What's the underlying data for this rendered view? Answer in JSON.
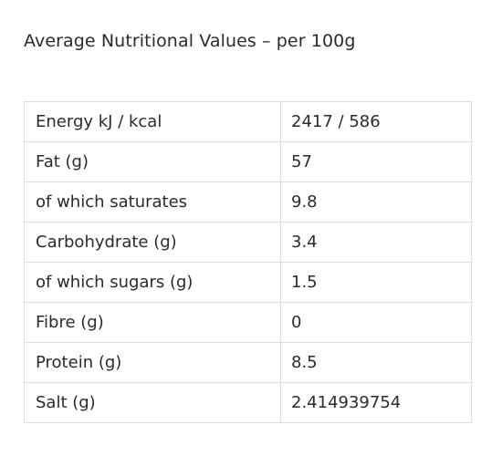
{
  "title": "Average Nutritional Values – per 100g",
  "rows": [
    {
      "label": "Energy kJ / kcal",
      "value": "2417 / 586"
    },
    {
      "label": "Fat (g)",
      "value": "57"
    },
    {
      "label": "of which saturates",
      "value": "9.8"
    },
    {
      "label": "Carbohydrate (g)",
      "value": "3.4"
    },
    {
      "label": "of which sugars (g)",
      "value": "1.5"
    },
    {
      "label": "Fibre (g)",
      "value": "0"
    },
    {
      "label": "Protein (g)",
      "value": "8.5"
    },
    {
      "label": "Salt (g)",
      "value": "2.414939754"
    }
  ]
}
